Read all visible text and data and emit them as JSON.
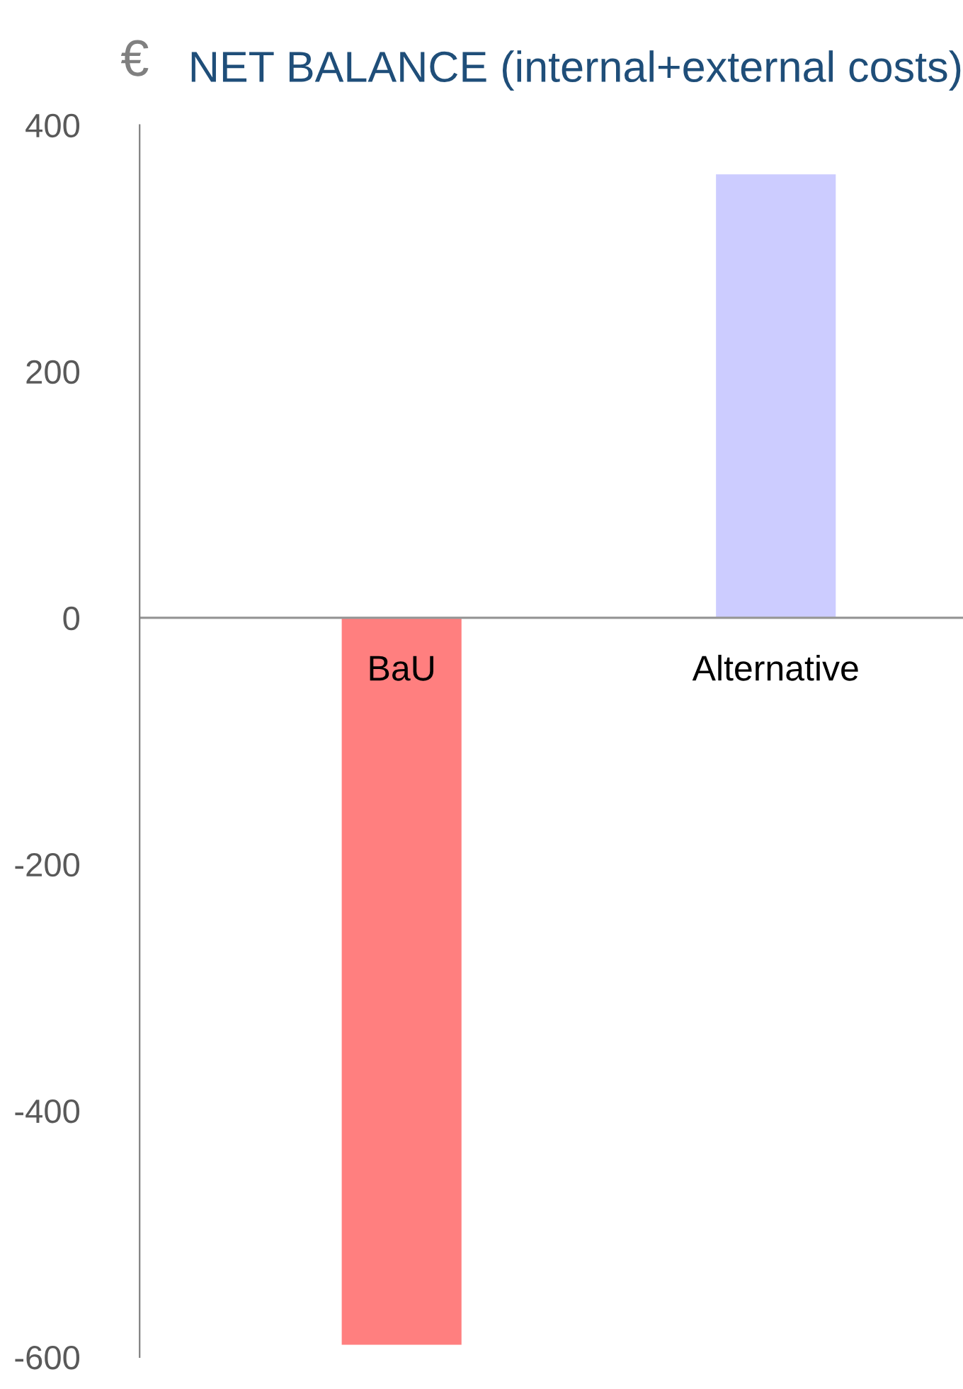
{
  "chart_data": {
    "type": "bar",
    "title": "NET BALANCE (internal+external costs)",
    "ylabel": "€",
    "categories": [
      "BaU",
      "Alternative"
    ],
    "values": [
      -590,
      360
    ],
    "colors": [
      "#ff7f7f",
      "#ccccff"
    ],
    "ylim": [
      -600,
      400
    ],
    "yticks": [
      -600,
      -400,
      -200,
      0,
      200,
      400
    ],
    "grid": false,
    "legend": false
  }
}
